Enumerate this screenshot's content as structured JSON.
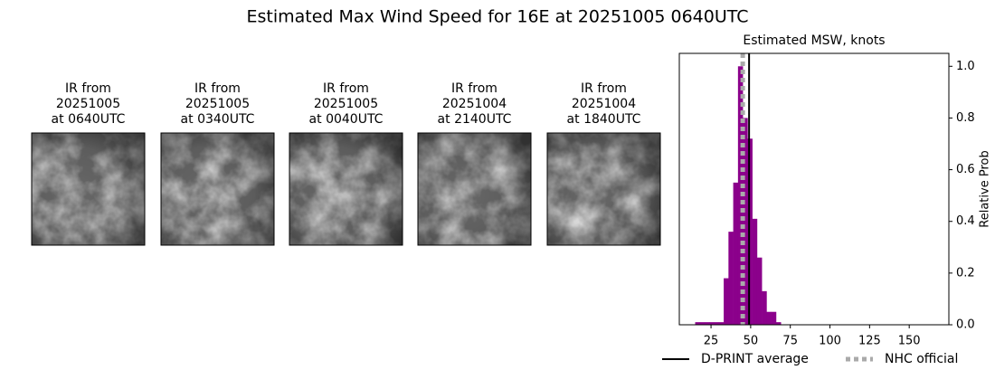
{
  "title": "Estimated Max Wind Speed for 16E at 20251005 0640UTC",
  "image_panels": [
    {
      "lines": [
        "IR from",
        "20251005",
        "at 0640UTC"
      ]
    },
    {
      "lines": [
        "IR from",
        "20251005",
        "at 0340UTC"
      ]
    },
    {
      "lines": [
        "IR from",
        "20251005",
        "at 0040UTC"
      ]
    },
    {
      "lines": [
        "IR from",
        "20251004",
        "at 2140UTC"
      ]
    },
    {
      "lines": [
        "IR from",
        "20251004",
        "at 1840UTC"
      ]
    }
  ],
  "chart_data": {
    "type": "histogram",
    "title": "Estimated MSW, knots",
    "bins": [
      15,
      18,
      21,
      24,
      27,
      30,
      33,
      36,
      39,
      42,
      45,
      48,
      51,
      54,
      57,
      60,
      63,
      66,
      69
    ],
    "counts": [
      0.01,
      0.01,
      0.01,
      0.01,
      0.01,
      0.01,
      0.18,
      0.36,
      0.55,
      1.0,
      0.8,
      0.72,
      0.41,
      0.26,
      0.13,
      0.05,
      0.05,
      0.01
    ],
    "color": "#8b008b",
    "xlim": [
      5,
      175
    ],
    "xticks": [
      25,
      50,
      75,
      100,
      125,
      150
    ],
    "ylim": [
      0,
      1.05
    ],
    "yticks": [
      {
        "value": 0,
        "label": "0.0"
      },
      {
        "value": 0.2,
        "label": "0.2"
      },
      {
        "value": 0.4,
        "label": "0.4"
      },
      {
        "value": 0.6,
        "label": "0.6"
      },
      {
        "value": 0.8,
        "label": "0.8"
      },
      {
        "value": 1,
        "label": "1.0"
      }
    ],
    "ylabel": "Relative Prob",
    "yaxis_side": "right",
    "lines": [
      {
        "name": "D-PRINT average",
        "value": 49,
        "color": "#000000",
        "style": "solid"
      },
      {
        "name": "NHC official",
        "value": 45,
        "color": "#aaaaaa",
        "style": "dotted"
      }
    ],
    "legend": "lower center"
  }
}
